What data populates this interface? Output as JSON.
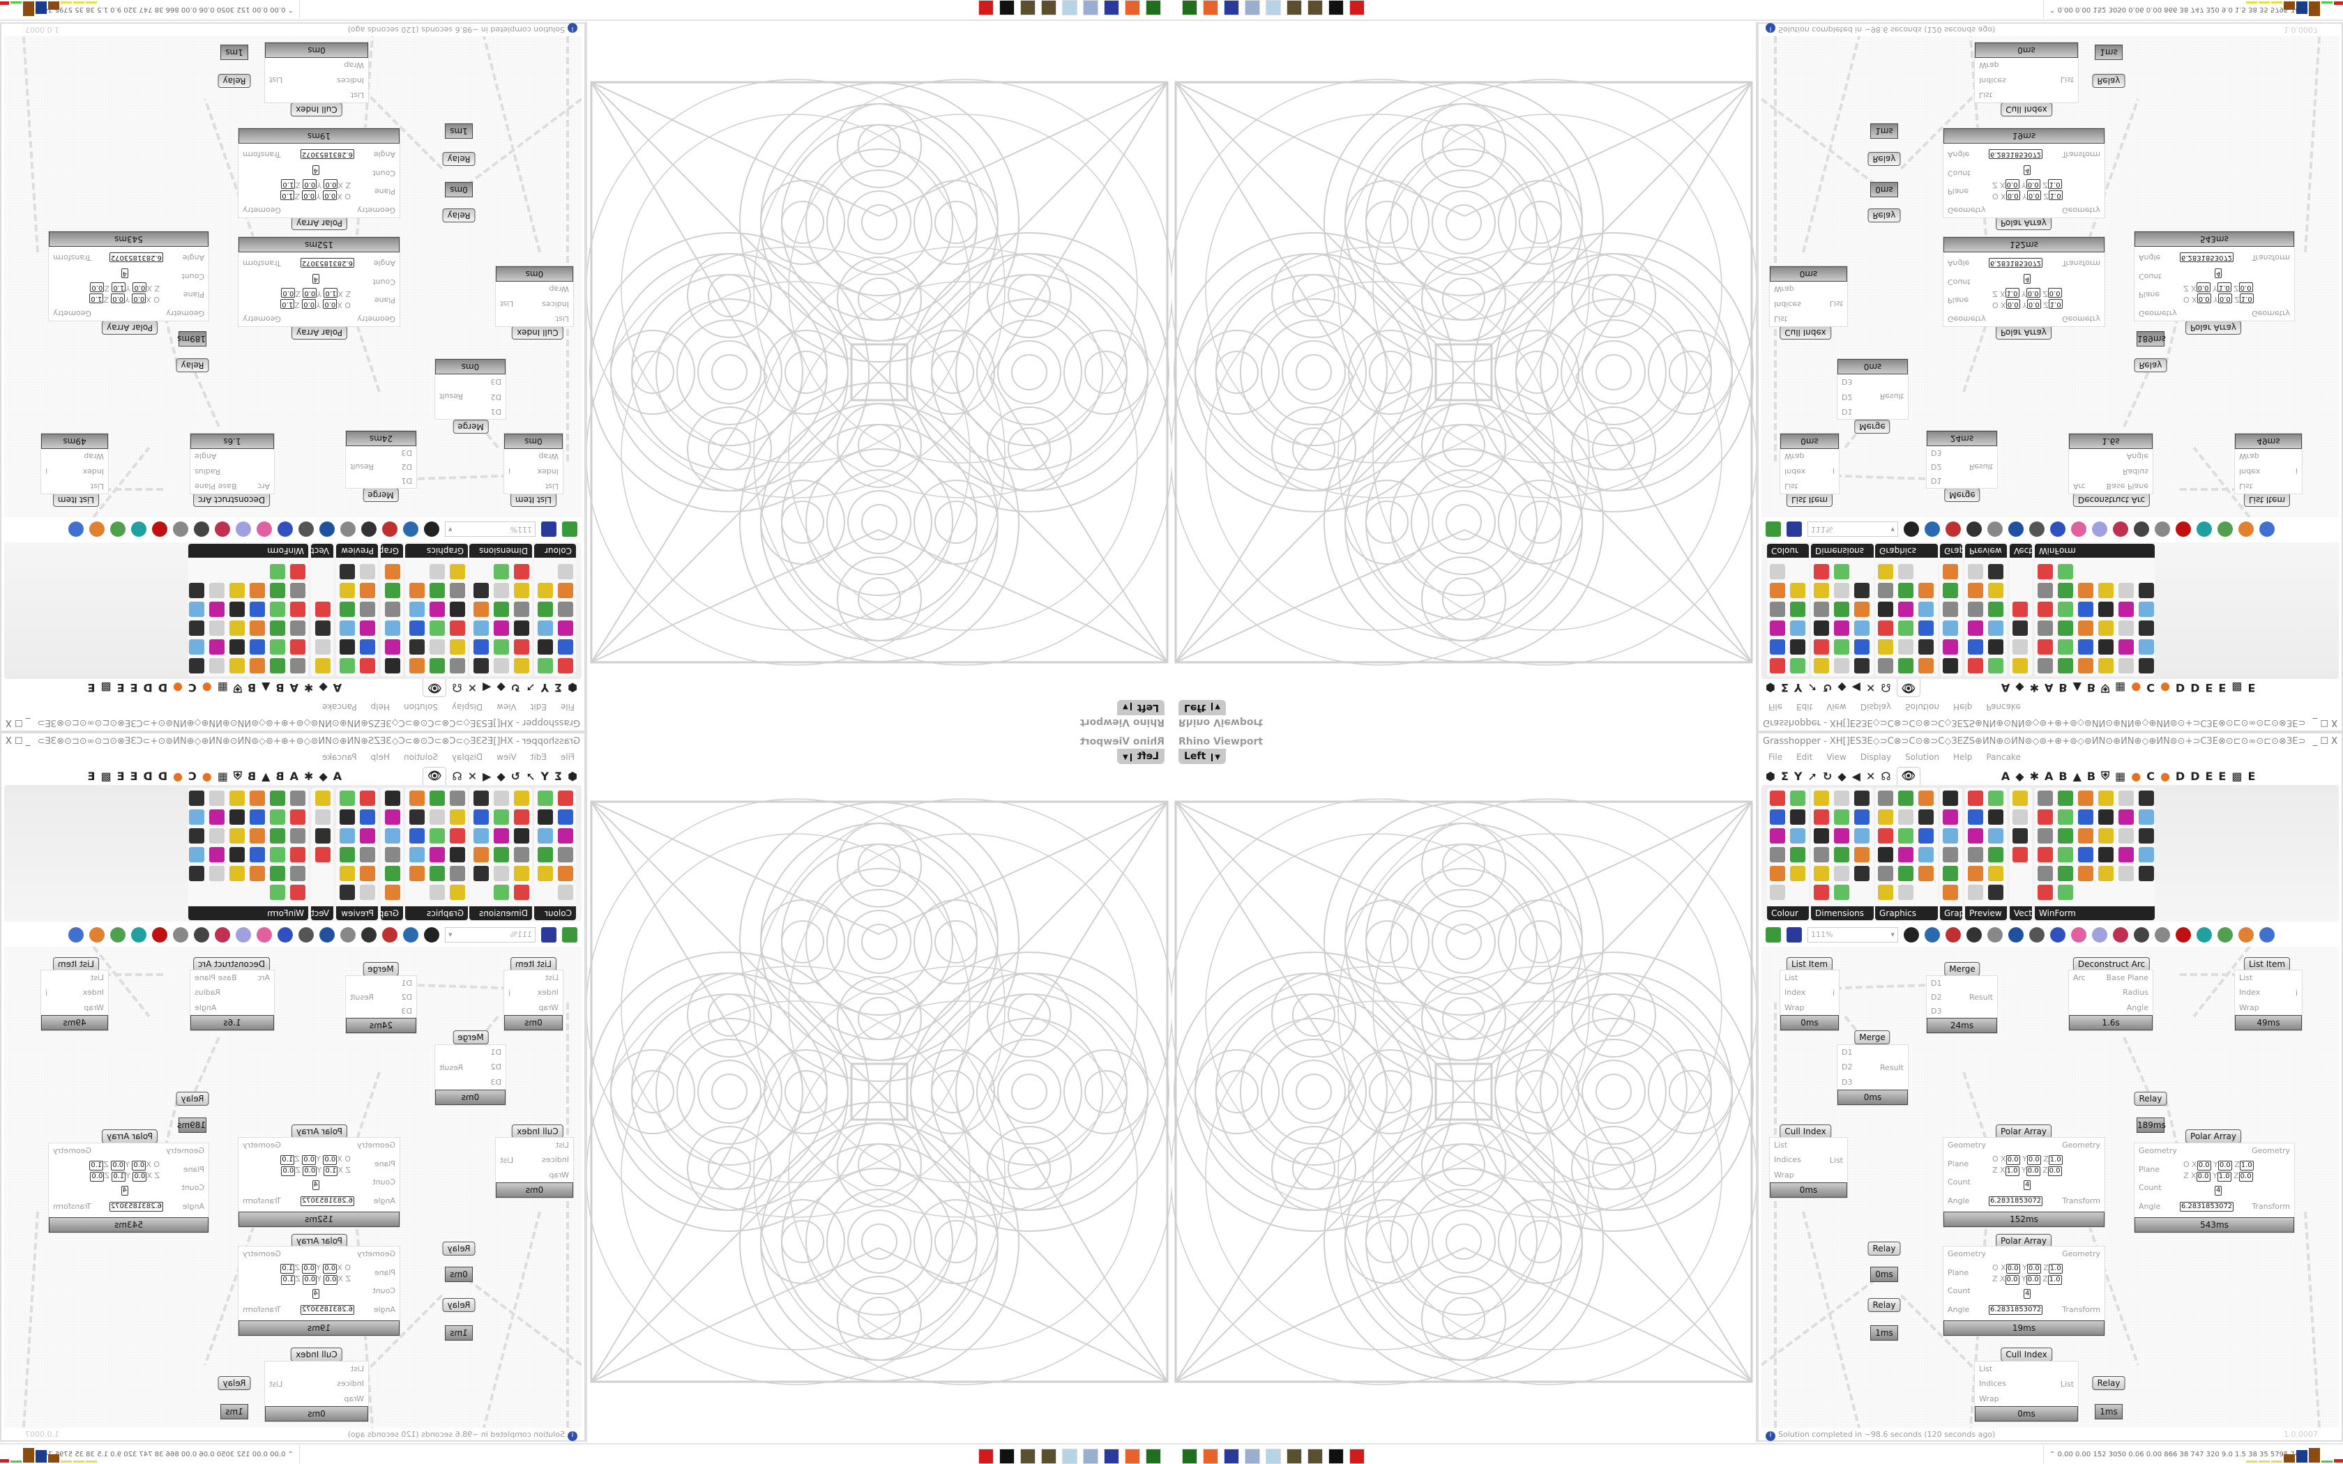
{
  "viewport": {
    "label": "Rhino Viewport",
    "view": "Left"
  },
  "grasshopper": {
    "title": "Grasshopper - XH[]ESЗE◇⊃C⊗⊃C⊙⊗⊃C◇ЗEZS⊕ИN⊕⊙ИN⊚◇⊚+⊕+⊚◇⊚ИN⊙⊕ИN⊕◇⊕ИN⊚⊙+⊃CЗE⊗⊙⊏⊙∞⊙⊏⊙⊗ЗE⊃C+⊙⊚ИN⊕◇⊕ЗE⊗ЗE⊞+ES+⊞ЗE⊗ЗE⊕◇⊕⊗⊏ЗE⊞⊕+⊃C...",
    "window_buttons": "_ ☐ X",
    "menu": [
      "File",
      "Edit",
      "View",
      "Display",
      "Solution",
      "Help",
      "Pancake"
    ],
    "tab_icons": [
      "⬢",
      "Σ",
      "Y",
      "➚",
      "↻",
      "◆",
      "◀",
      "✕",
      "☊"
    ],
    "tab_letters": [
      "A",
      "◆",
      "✱",
      "A",
      "B",
      "▲",
      "B",
      "⛨",
      "▦",
      "●",
      "C",
      "●",
      "D",
      "D",
      "E",
      "E",
      "▩",
      "E"
    ],
    "active_tab_icon": "eye-icon",
    "panels": [
      {
        "label": "Colour",
        "cols": 2,
        "count": 11
      },
      {
        "label": "Dimensions",
        "cols": 3,
        "count": 17
      },
      {
        "label": "Graphics",
        "cols": 3,
        "count": 17
      },
      {
        "label": "Grap..",
        "cols": 1,
        "count": 6
      },
      {
        "label": "Preview",
        "cols": 2,
        "count": 12
      },
      {
        "label": "Vect..",
        "cols": 1,
        "count": 4
      },
      {
        "label": "WinForm",
        "cols": 6,
        "count": 32
      }
    ],
    "zoom": "111%",
    "nodes": [
      {
        "title": "List Item",
        "inputs": [
          "List",
          "Index",
          "Wrap"
        ],
        "outputs": [
          "i"
        ],
        "time": "0ms"
      },
      {
        "title": "Merge",
        "inputs": [
          "D1",
          "D2",
          "D3"
        ],
        "outputs": [
          "Result"
        ],
        "time": "24ms"
      },
      {
        "title": "Merge",
        "inputs": [
          "D1",
          "D2",
          "D3"
        ],
        "outputs": [
          "Result"
        ],
        "time": "0ms"
      },
      {
        "title": "Deconstruct Arc",
        "inputs": [
          "Arc"
        ],
        "outputs": [
          "Base Plane",
          "Radius",
          "Angle"
        ],
        "time": "1.6s"
      },
      {
        "title": "List Item",
        "inputs": [
          "List",
          "Index",
          "Wrap"
        ],
        "outputs": [
          "i"
        ],
        "time": "49ms"
      },
      {
        "title": "Cull Index",
        "inputs": [
          "List",
          "Indices",
          "Wrap"
        ],
        "outputs": [
          "List"
        ],
        "time": "0ms"
      },
      {
        "title": "Polar Array",
        "inputs": [
          "Geometry",
          "Plane",
          "Count",
          "Angle"
        ],
        "outputs": [
          "Geometry",
          "Transform"
        ],
        "plane_o": [
          "0.0",
          "0.0",
          "1.0"
        ],
        "plane_z": [
          "1.0",
          "0.0",
          "0.0"
        ],
        "count": "4",
        "angle": "6.2831853072",
        "time": "152ms"
      },
      {
        "title": "Relay",
        "inputs": [],
        "outputs": [],
        "time": "189ms"
      },
      {
        "title": "Polar Array",
        "inputs": [
          "Geometry",
          "Plane",
          "Count",
          "Angle"
        ],
        "outputs": [
          "Geometry",
          "Transform"
        ],
        "plane_o": [
          "0.0",
          "0.0",
          "1.0"
        ],
        "plane_z": [
          "0.0",
          "1.0",
          "0.0"
        ],
        "count": "4",
        "angle": "6.2831853072",
        "time": "543ms"
      },
      {
        "title": "Polar Array",
        "inputs": [
          "Geometry",
          "Plane",
          "Count",
          "Angle"
        ],
        "outputs": [
          "Geometry",
          "Transform"
        ],
        "plane_o": [
          "0.0",
          "0.0",
          "1.0"
        ],
        "plane_z": [
          "0.0",
          "0.0",
          "1.0"
        ],
        "count": "4",
        "angle": "6.2831853072",
        "time": "19ms"
      },
      {
        "title": "Relay",
        "inputs": [],
        "outputs": [],
        "time": "0ms"
      },
      {
        "title": "Relay",
        "inputs": [],
        "outputs": [],
        "time": "1ms"
      },
      {
        "title": "Cull Index",
        "inputs": [
          "List",
          "Indices",
          "Wrap"
        ],
        "outputs": [
          "List"
        ],
        "time": "0ms"
      },
      {
        "title": "Relay",
        "inputs": [],
        "outputs": [],
        "time": "1ms"
      }
    ],
    "status": "Solution completed in ~98.6 seconds (120 seconds ago)",
    "version": "1.0.0007"
  },
  "taskbar": {
    "apps": [
      {
        "name": "monitor-app-icon",
        "color": "#1f6f1f"
      },
      {
        "name": "firefox-icon",
        "color": "#e8632b"
      },
      {
        "name": "floppy-64-icon",
        "color": "#2a3a9a"
      },
      {
        "name": "scroll-icon",
        "color": "#9aaed0"
      },
      {
        "name": "notepad-icon",
        "color": "#b7d3e6"
      },
      {
        "name": "seed-icon",
        "color": "#5a5030"
      },
      {
        "name": "seed-icon",
        "color": "#5a5030"
      },
      {
        "name": "rhino-icon",
        "color": "#111111"
      },
      {
        "name": "gear-app-icon",
        "color": "#d21c1c"
      }
    ],
    "tray_readout": "0.00 0.00 152 3050 0.06 0.00 866  38  747  320  9.0  1.5  38  35 5795 7460",
    "tray_bars": [
      {
        "color": "#e8e040",
        "level": 0.05
      },
      {
        "color": "#e8e040",
        "level": 0.05
      },
      {
        "color": "#e8e040",
        "level": 0.05
      },
      {
        "color": "#8a4a10",
        "level": 0.5
      },
      {
        "color": "#1a3c8c",
        "level": 0.8
      },
      {
        "color": "#8a4a10",
        "level": 0.95
      },
      {
        "color": "#40d040",
        "level": 0.05
      },
      {
        "color": "#d02020",
        "level": 0.15
      }
    ]
  }
}
